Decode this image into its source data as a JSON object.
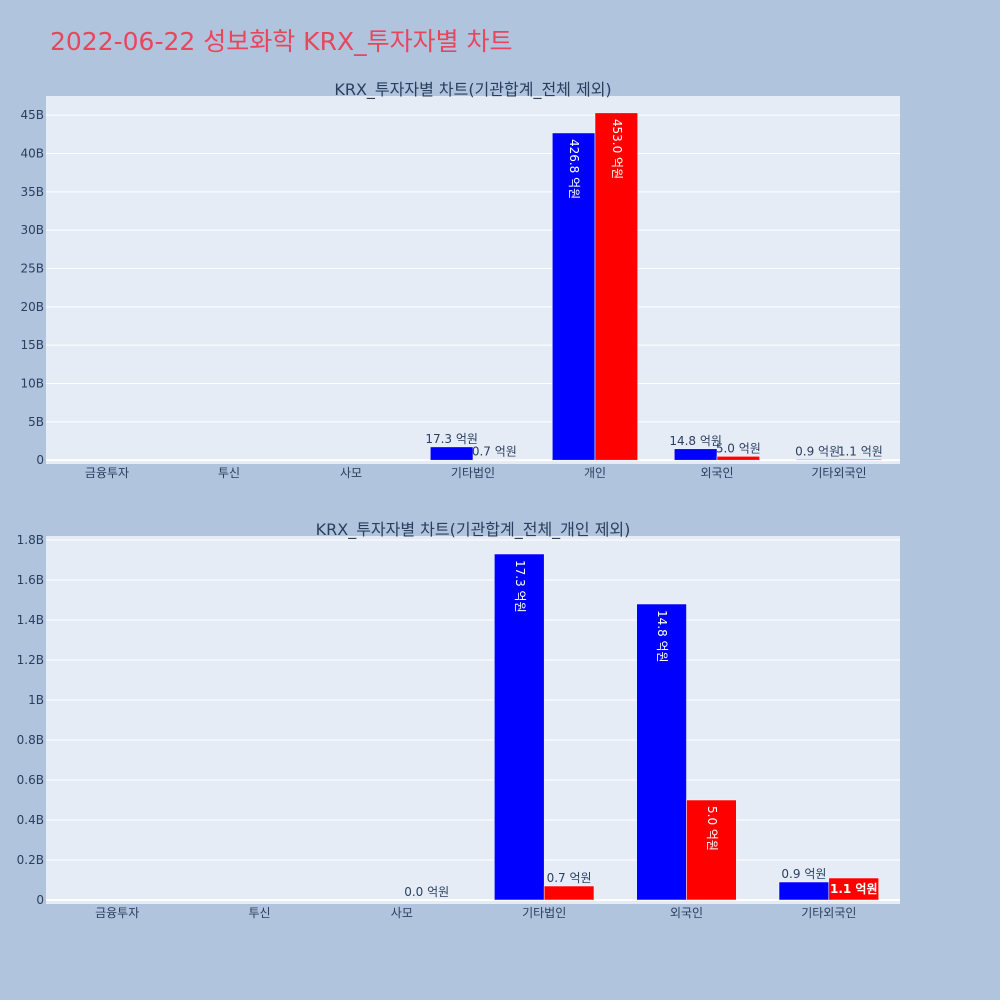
{
  "page": {
    "title": "2022-06-22 성보화학 KRX_투자자별 차트"
  },
  "chart_data": [
    {
      "type": "bar",
      "title": "KRX_투자자별 차트(기관합계_전체 제외)",
      "categories": [
        "금융투자",
        "투신",
        "사모",
        "기타법인",
        "개인",
        "외국인",
        "기타외국인"
      ],
      "series": [
        {
          "color": "#0000ff",
          "values": [
            0,
            0,
            0,
            1730000000,
            42680000000,
            1480000000,
            90000000
          ],
          "labels": [
            "",
            "",
            "",
            "17.3 억원",
            "426.8 억원",
            "14.8 억원",
            "0.9 억원"
          ]
        },
        {
          "color": "#ff0000",
          "values": [
            0,
            0,
            0,
            70000000,
            45300000000,
            500000000,
            110000000
          ],
          "labels": [
            "",
            "",
            "",
            "0.7 억원",
            "453.0 억원",
            "5.0 억원",
            "1.1 억원"
          ]
        }
      ],
      "ylim": [
        -500000000,
        47500000000
      ],
      "yticks": [
        0,
        5000000000,
        10000000000,
        15000000000,
        20000000000,
        25000000000,
        30000000000,
        35000000000,
        40000000000,
        45000000000
      ],
      "ytick_labels": [
        "0",
        "5B",
        "10B",
        "15B",
        "20B",
        "25B",
        "30B",
        "35B",
        "40B",
        "45B"
      ],
      "grid": true,
      "bar_color_background": "#e5ecf6"
    },
    {
      "type": "bar",
      "title": "KRX_투자자별 차트(기관합계_전체_개인 제외)",
      "categories": [
        "금융투자",
        "투신",
        "사모",
        "기타법인",
        "외국인",
        "기타외국인"
      ],
      "series": [
        {
          "color": "#0000ff",
          "values": [
            0,
            0,
            0,
            1730000000,
            1480000000,
            90000000
          ],
          "labels": [
            "",
            "",
            "",
            "17.3 억원",
            "14.8 억원",
            "0.9 억원"
          ]
        },
        {
          "color": "#ff0000",
          "values": [
            0,
            0,
            0,
            70000000,
            500000000,
            110000000
          ],
          "labels": [
            "",
            "",
            "0.0 억원",
            "0.7 억원",
            "5.0 억원",
            "1.1 억원"
          ]
        }
      ],
      "ylim": [
        -20000000,
        1820000000
      ],
      "yticks": [
        0,
        200000000,
        400000000,
        600000000,
        800000000,
        1000000000,
        1200000000,
        1400000000,
        1600000000,
        1800000000
      ],
      "ytick_labels": [
        "0",
        "0.2B",
        "0.4B",
        "0.6B",
        "0.8B",
        "1B",
        "1.2B",
        "1.4B",
        "1.6B",
        "1.8B"
      ],
      "grid": true,
      "bar_color_background": "#e5ecf6"
    }
  ]
}
